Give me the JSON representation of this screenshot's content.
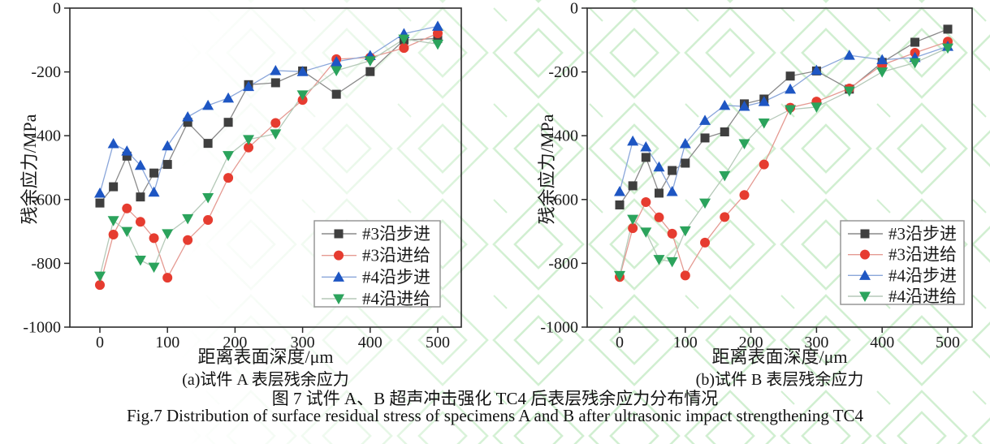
{
  "figure": {
    "caption_cn": "图 7 试件 A、B 超声冲击强化 TC4 后表层残余应力分布情况",
    "caption_en": "Fig.7 Distribution of surface residual stress of specimens A and B after ultrasonic impact strengthening TC4"
  },
  "style": {
    "axis_color": "#2b2b2b",
    "tick_label_color": "#1a1a1a",
    "legend_border_color": "#909090",
    "watermark_color": "#c9edc9"
  },
  "chart_data": [
    {
      "type": "line",
      "subcaption": "(a)试件 A 表层残余应力",
      "xlabel": "距离表面深度/μm",
      "ylabel": "残余应力/MPa",
      "xticks": [
        0,
        100,
        200,
        300,
        400,
        500
      ],
      "yticks": [
        0,
        -200,
        -400,
        -600,
        -800,
        -1000
      ],
      "xlim": [
        -45,
        545
      ],
      "ylim": [
        -1000,
        0
      ],
      "grid": false,
      "legend_position": "inside-bottom-right",
      "x": [
        0,
        20,
        40,
        60,
        80,
        100,
        130,
        160,
        190,
        220,
        260,
        300,
        350,
        400,
        450,
        500
      ],
      "series": [
        {
          "name": "#3沿步进",
          "marker": "square",
          "marker_color": "#3f3f3f",
          "line_color": "#8a8a8a",
          "values": [
            -611,
            -560,
            -464,
            -592,
            -517,
            -490,
            -358,
            -424,
            -358,
            -240,
            -234,
            -197,
            -270,
            -199,
            -100,
            -95
          ]
        },
        {
          "name": "#3沿进给",
          "marker": "circle",
          "marker_color": "#e63c30",
          "line_color": "#e59a92",
          "values": [
            -868,
            -710,
            -628,
            -670,
            -721,
            -845,
            -727,
            -664,
            -532,
            -437,
            -360,
            -288,
            -160,
            -155,
            -125,
            -79
          ]
        },
        {
          "name": "#4沿步进",
          "marker": "triangle-up",
          "marker_color": "#1e56c3",
          "line_color": "#8aa6da",
          "values": [
            -580,
            -425,
            -448,
            -493,
            -577,
            -432,
            -341,
            -305,
            -282,
            -246,
            -196,
            -199,
            -168,
            -149,
            -80,
            -57
          ]
        },
        {
          "name": "#4沿进给",
          "marker": "triangle-down",
          "marker_color": "#2ba35c",
          "line_color": "#b5c9b8",
          "values": [
            -840,
            -666,
            -700,
            -790,
            -812,
            -707,
            -660,
            -594,
            -462,
            -412,
            -394,
            -272,
            -196,
            -165,
            -97,
            -113
          ]
        }
      ]
    },
    {
      "type": "line",
      "subcaption": "(b)试件 B 表层残余应力",
      "xlabel": "距离表面深度/μm",
      "ylabel": "残余应力/MPa",
      "xticks": [
        0,
        100,
        200,
        300,
        400,
        500
      ],
      "yticks": [
        0,
        -200,
        -400,
        -600,
        -800,
        -1000
      ],
      "xlim": [
        -50,
        540
      ],
      "ylim": [
        -1000,
        0
      ],
      "grid": false,
      "legend_position": "inside-bottom-right",
      "x": [
        0,
        20,
        40,
        60,
        80,
        100,
        130,
        160,
        190,
        220,
        260,
        300,
        350,
        400,
        450,
        500
      ],
      "series": [
        {
          "name": "#3沿步进",
          "marker": "square",
          "marker_color": "#3f3f3f",
          "line_color": "#8a8a8a",
          "values": [
            -617,
            -557,
            -468,
            -580,
            -509,
            -486,
            -407,
            -388,
            -300,
            -285,
            -213,
            -197,
            -254,
            -170,
            -107,
            -66
          ]
        },
        {
          "name": "#3沿进给",
          "marker": "circle",
          "marker_color": "#e63c30",
          "line_color": "#e59a92",
          "values": [
            -843,
            -690,
            -608,
            -656,
            -707,
            -838,
            -735,
            -655,
            -586,
            -490,
            -312,
            -293,
            -252,
            -178,
            -140,
            -105
          ]
        },
        {
          "name": "#4沿步进",
          "marker": "triangle-up",
          "marker_color": "#1e56c3",
          "line_color": "#8aa6da",
          "values": [
            -575,
            -417,
            -435,
            -498,
            -575,
            -425,
            -352,
            -305,
            -308,
            -293,
            -254,
            -195,
            -148,
            -162,
            -155,
            -120
          ]
        },
        {
          "name": "#4沿进给",
          "marker": "triangle-down",
          "marker_color": "#2ba35c",
          "line_color": "#b5c9b8",
          "values": [
            -838,
            -662,
            -702,
            -788,
            -795,
            -698,
            -611,
            -525,
            -425,
            -360,
            -318,
            -310,
            -260,
            -200,
            -171,
            -125
          ]
        }
      ]
    }
  ]
}
